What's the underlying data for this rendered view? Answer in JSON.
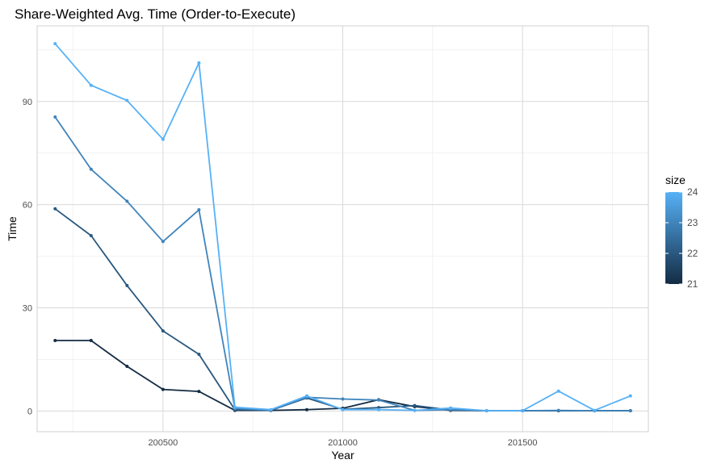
{
  "chart_data": {
    "type": "line",
    "title": "Share-Weighted Avg. Time (Order-to-Execute)",
    "xlabel": "Year",
    "ylabel": "Time",
    "xlim": [
      200150,
      201850
    ],
    "ylim": [
      -6,
      112
    ],
    "x_ticks": [
      200500,
      201000,
      201500
    ],
    "x_tick_labels": [
      "200500",
      "201000",
      "201500"
    ],
    "y_ticks": [
      0,
      30,
      60,
      90
    ],
    "y_tick_labels": [
      "0",
      "30",
      "60",
      "90"
    ],
    "x": [
      200200,
      200300,
      200400,
      200500,
      200600,
      200700,
      200800,
      200900,
      201000,
      201100,
      201200,
      201300,
      201400,
      201500,
      201600,
      201700,
      201800
    ],
    "grid": true,
    "legend": {
      "title": "size",
      "position": "right",
      "min": 21,
      "max": 24,
      "ticks": [
        "21",
        "22",
        "23",
        "24"
      ],
      "low_color": "#132B43",
      "high_color": "#56B1F7"
    },
    "series": [
      {
        "size": 21,
        "values": [
          20.5,
          20.5,
          13,
          6.3,
          5.7,
          0.2,
          0.2,
          0.4,
          0.8,
          3.3,
          1.3,
          0.2,
          0.1,
          0.1,
          0.1,
          0.1,
          0.1
        ]
      },
      {
        "size": 22,
        "values": [
          58.8,
          51,
          36.5,
          23.3,
          16.5,
          0.4,
          0.2,
          3.8,
          0.5,
          1.0,
          1.6,
          0.3,
          0.1,
          0.1,
          0.1,
          0.1,
          0.1
        ]
      },
      {
        "size": 23,
        "values": [
          85.5,
          70.3,
          61,
          49.3,
          58.5,
          0.7,
          0.3,
          4.0,
          3.5,
          3.2,
          0.2,
          0.4,
          0.1,
          0.1,
          0.2,
          0.1,
          0.1
        ]
      },
      {
        "size": 24,
        "values": [
          106.8,
          94.7,
          90.3,
          79,
          101.2,
          1.1,
          0.4,
          4.4,
          0.4,
          0.4,
          0.2,
          0.9,
          0.1,
          0.1,
          5.8,
          0.2,
          4.4
        ]
      }
    ]
  }
}
